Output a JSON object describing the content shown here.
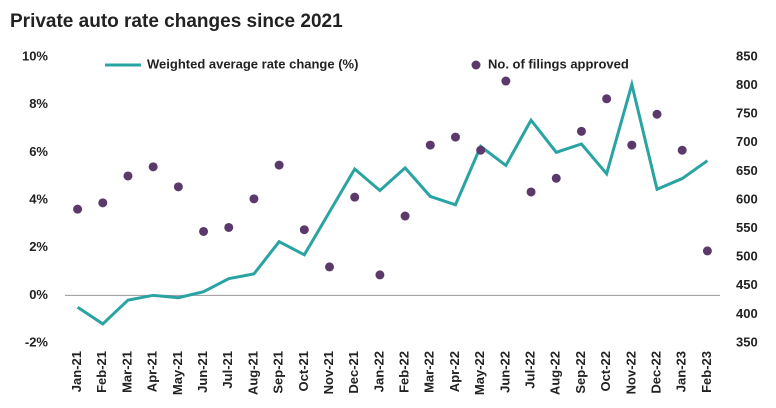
{
  "chart_data": {
    "type": "line",
    "title": "Private auto rate changes since 2021",
    "categories": [
      "Jan-21",
      "Feb-21",
      "Mar-21",
      "Apr-21",
      "May-21",
      "Jun-21",
      "Jul-21",
      "Aug-21",
      "Sep-21",
      "Oct-21",
      "Nov-21",
      "Dec-21",
      "Jan-22",
      "Feb-22",
      "Mar-22",
      "Apr-22",
      "May-22",
      "Jun-22",
      "Jul-22",
      "Aug-22",
      "Sep-22",
      "Oct-22",
      "Nov-22",
      "Dec-22",
      "Jan-23",
      "Feb-23"
    ],
    "series": [
      {
        "name": "Weighted average rate change (%)",
        "type": "line",
        "color": "#2aa3a3",
        "axis": "y",
        "values": [
          -0.5,
          -1.2,
          -0.2,
          0.0,
          -0.1,
          0.15,
          0.7,
          0.9,
          2.25,
          1.7,
          3.5,
          5.3,
          4.4,
          5.35,
          4.15,
          3.8,
          6.25,
          5.45,
          7.35,
          6.0,
          6.35,
          5.1,
          8.85,
          4.45,
          4.9,
          5.65
        ]
      },
      {
        "name": "No. of filings approved",
        "type": "scatter",
        "color": "#5b3a6b",
        "axis": "y2",
        "values": [
          584,
          595,
          642,
          658,
          623,
          545,
          552,
          602,
          661,
          548,
          483,
          605,
          469,
          572,
          696,
          710,
          687,
          808,
          614,
          638,
          720,
          777,
          696,
          750,
          687,
          511
        ]
      }
    ],
    "ylim": [
      -2,
      10
    ],
    "yticks": [
      {
        "value": -2,
        "label": "-2%"
      },
      {
        "value": 0,
        "label": "0%"
      },
      {
        "value": 2,
        "label": "2%"
      },
      {
        "value": 4,
        "label": "4%"
      },
      {
        "value": 6,
        "label": "6%"
      },
      {
        "value": 8,
        "label": "8%"
      },
      {
        "value": 10,
        "label": "10%"
      }
    ],
    "y2lim": [
      350,
      850
    ],
    "y2ticks": [
      350,
      400,
      450,
      500,
      550,
      600,
      650,
      700,
      750,
      800,
      850
    ],
    "grid": false,
    "legend": "top"
  }
}
